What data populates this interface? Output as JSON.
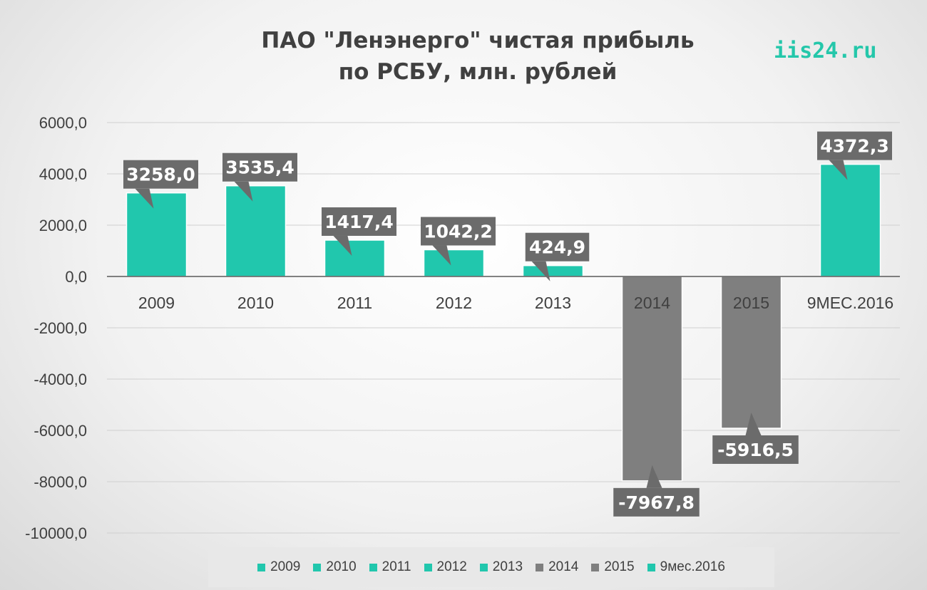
{
  "chart_data": {
    "type": "bar",
    "title_line1": "ПАО \"Ленэнерго\" чистая прибыль",
    "title_line2": "по РСБУ, млн. рублей",
    "categories": [
      "2009",
      "2010",
      "2011",
      "2012",
      "2013",
      "2014",
      "2015",
      "9МЕС.2016"
    ],
    "values": [
      3258.0,
      3535.4,
      1417.4,
      1042.2,
      424.9,
      -7967.8,
      -5916.5,
      4372.3
    ],
    "data_labels": [
      "3258,0",
      "3535,4",
      "1417,4",
      "1042,2",
      "424,9",
      "-7967,8",
      "-5916,5",
      "4372,3"
    ],
    "legend": [
      "2009",
      "2010",
      "2011",
      "2012",
      "2013",
      "2014",
      "2015",
      "9мес.2016"
    ],
    "y_ticks": [
      6000,
      4000,
      2000,
      0,
      -2000,
      -4000,
      -6000,
      -8000,
      -10000
    ],
    "y_tick_labels": [
      "6000,0",
      "4000,0",
      "2000,0",
      "0,0",
      "-2000,0",
      "-4000,0",
      "-6000,0",
      "-8000,0",
      "-10000,0"
    ],
    "ylim": [
      -10000,
      6000
    ],
    "grid": true,
    "legend_position": "bottom",
    "colors": {
      "positive": "#21c7ad",
      "negative": "#7f7f7f",
      "callout": "#6b6b6b"
    }
  },
  "watermark": "iis24.ru"
}
